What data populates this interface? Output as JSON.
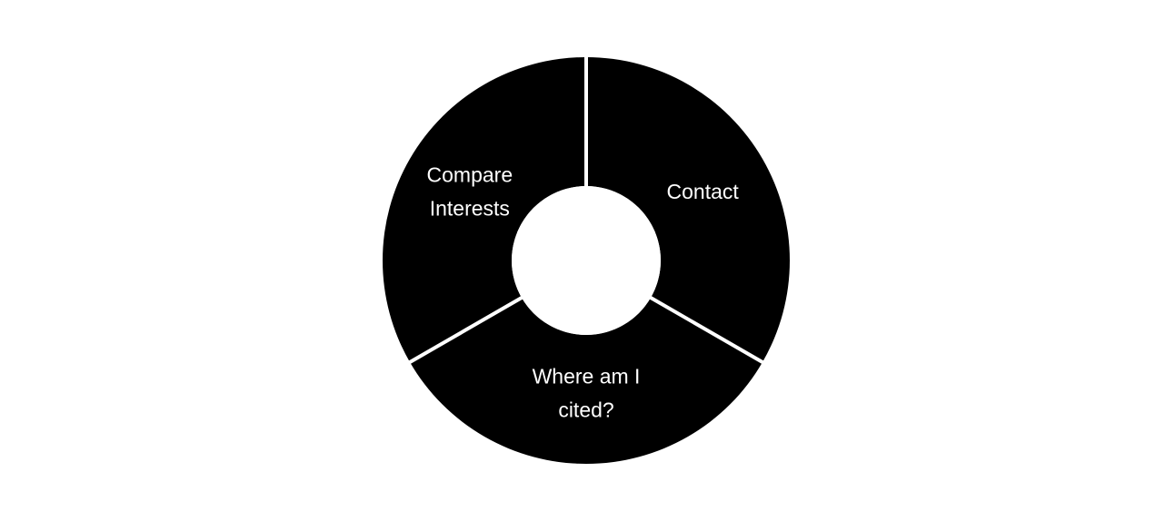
{
  "colors": {
    "background": "#ffffff",
    "segment_fill": "#000000",
    "label_text": "#ffffff",
    "divider": "#ffffff",
    "center": "#ffffff"
  },
  "menu": {
    "segments": [
      {
        "id": "contact",
        "label_lines": [
          "Contact"
        ]
      },
      {
        "id": "where-am-i-cited",
        "label_lines": [
          "Where am I",
          "cited?"
        ]
      },
      {
        "id": "compare-interests",
        "label_lines": [
          "Compare",
          "Interests"
        ]
      }
    ]
  }
}
